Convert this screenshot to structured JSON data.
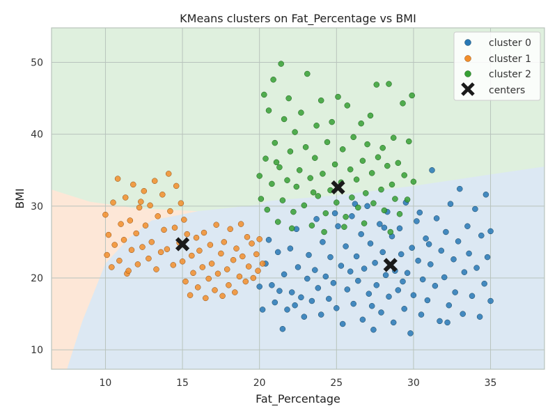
{
  "chart_data": {
    "type": "scatter",
    "title": "KMeans clusters on Fat_Percentage vs BMI",
    "xlabel": "Fat_Percentage",
    "ylabel": "BMI",
    "xlim": [
      6.5,
      38.5
    ],
    "ylim": [
      7.3,
      54.8
    ],
    "xticks": [
      10,
      15,
      20,
      25,
      30,
      35
    ],
    "yticks": [
      10,
      20,
      30,
      40,
      50
    ],
    "grid": true,
    "legend_position": "top-right",
    "colors": {
      "cluster 0": "#2878b5",
      "cluster 1": "#f28e2b",
      "cluster 2": "#37a035",
      "centers": "#1a1a1a",
      "region 0": "#dce8f3",
      "region 1": "#fde7d7",
      "region 2": "#dff0de",
      "grid": "#b8c3bc"
    },
    "boundaries": {
      "region_1_vs_0": [
        [
          7.5,
          7.3
        ],
        [
          8.5,
          14
        ],
        [
          10,
          22
        ],
        [
          11.5,
          25.5
        ],
        [
          13,
          28
        ],
        [
          16,
          29.3
        ],
        [
          20,
          30.2
        ],
        [
          20.5,
          30.7
        ]
      ],
      "region_1_vs_2": [
        [
          6.5,
          32.3
        ],
        [
          9,
          30.6
        ],
        [
          12,
          29.7
        ],
        [
          16,
          29.3
        ],
        [
          20,
          30.2
        ],
        [
          20.5,
          30.7
        ]
      ],
      "region_0_vs_2": [
        [
          20.5,
          30.7
        ],
        [
          25,
          31.5
        ],
        [
          30,
          32.8
        ],
        [
          35,
          34.4
        ],
        [
          38.5,
          35.5
        ]
      ]
    },
    "centers": [
      {
        "cluster": "cluster 0",
        "x": 28.5,
        "y": 21.8
      },
      {
        "cluster": "cluster 1",
        "x": 15.0,
        "y": 24.7
      },
      {
        "cluster": "cluster 2",
        "x": 25.1,
        "y": 32.6
      }
    ],
    "series": [
      {
        "name": "cluster 0",
        "points": [
          [
            20.0,
            18.8
          ],
          [
            20.2,
            15.6
          ],
          [
            20.4,
            22.0
          ],
          [
            20.6,
            25.3
          ],
          [
            20.8,
            19.0
          ],
          [
            21.0,
            16.6
          ],
          [
            21.2,
            23.6
          ],
          [
            21.3,
            18.2
          ],
          [
            21.5,
            12.9
          ],
          [
            21.6,
            20.5
          ],
          [
            21.8,
            15.6
          ],
          [
            22.0,
            24.1
          ],
          [
            22.1,
            18.0
          ],
          [
            22.3,
            16.2
          ],
          [
            22.5,
            21.5
          ],
          [
            22.7,
            17.3
          ],
          [
            22.9,
            14.6
          ],
          [
            23.1,
            19.9
          ],
          [
            23.2,
            23.2
          ],
          [
            23.4,
            16.8
          ],
          [
            23.6,
            21.1
          ],
          [
            23.8,
            18.6
          ],
          [
            24.0,
            14.9
          ],
          [
            24.1,
            25.0
          ],
          [
            24.3,
            20.2
          ],
          [
            24.5,
            17.1
          ],
          [
            24.6,
            22.9
          ],
          [
            24.8,
            19.3
          ],
          [
            25.0,
            15.8
          ],
          [
            25.1,
            27.2
          ],
          [
            25.3,
            21.7
          ],
          [
            25.4,
            13.6
          ],
          [
            25.6,
            24.4
          ],
          [
            25.7,
            18.4
          ],
          [
            25.9,
            20.9
          ],
          [
            26.0,
            28.6
          ],
          [
            26.1,
            16.4
          ],
          [
            26.3,
            23.0
          ],
          [
            26.4,
            19.6
          ],
          [
            26.6,
            26.1
          ],
          [
            26.7,
            14.2
          ],
          [
            26.8,
            21.3
          ],
          [
            27.0,
            30.0
          ],
          [
            27.1,
            17.8
          ],
          [
            27.2,
            24.8
          ],
          [
            27.4,
            12.8
          ],
          [
            27.5,
            22.1
          ],
          [
            27.6,
            19.0
          ],
          [
            27.8,
            27.5
          ],
          [
            27.9,
            15.2
          ],
          [
            28.0,
            23.6
          ],
          [
            28.2,
            20.4
          ],
          [
            28.3,
            29.2
          ],
          [
            28.4,
            17.4
          ],
          [
            28.6,
            25.8
          ],
          [
            28.7,
            13.8
          ],
          [
            28.8,
            21.0
          ],
          [
            29.0,
            18.3
          ],
          [
            29.1,
            26.9
          ],
          [
            29.2,
            23.3
          ],
          [
            29.4,
            15.7
          ],
          [
            29.5,
            30.5
          ],
          [
            29.6,
            20.7
          ],
          [
            29.8,
            12.3
          ],
          [
            29.9,
            24.2
          ],
          [
            30.0,
            17.6
          ],
          [
            30.2,
            27.9
          ],
          [
            30.3,
            22.4
          ],
          [
            30.5,
            14.9
          ],
          [
            30.6,
            19.8
          ],
          [
            30.8,
            25.5
          ],
          [
            30.9,
            16.9
          ],
          [
            31.1,
            21.9
          ],
          [
            31.2,
            35.0
          ],
          [
            31.4,
            18.9
          ],
          [
            31.5,
            28.3
          ],
          [
            31.7,
            14.0
          ],
          [
            31.8,
            23.8
          ],
          [
            32.0,
            20.1
          ],
          [
            32.1,
            26.4
          ],
          [
            32.3,
            16.2
          ],
          [
            32.4,
            30.3
          ],
          [
            32.6,
            22.6
          ],
          [
            32.7,
            18.0
          ],
          [
            32.9,
            25.1
          ],
          [
            33.0,
            32.4
          ],
          [
            33.2,
            15.0
          ],
          [
            33.3,
            20.8
          ],
          [
            33.5,
            27.2
          ],
          [
            33.6,
            23.4
          ],
          [
            33.8,
            17.5
          ],
          [
            34.0,
            29.6
          ],
          [
            34.1,
            21.4
          ],
          [
            34.3,
            14.6
          ],
          [
            34.4,
            25.9
          ],
          [
            34.6,
            19.2
          ],
          [
            34.7,
            31.6
          ],
          [
            34.8,
            22.9
          ],
          [
            35.0,
            16.8
          ],
          [
            35.0,
            26.5
          ],
          [
            22.4,
            26.8
          ],
          [
            23.7,
            28.2
          ],
          [
            24.9,
            29.0
          ],
          [
            26.2,
            30.3
          ],
          [
            27.3,
            16.1
          ],
          [
            28.1,
            27.0
          ],
          [
            29.3,
            19.5
          ],
          [
            30.4,
            29.1
          ],
          [
            31.0,
            24.7
          ],
          [
            32.2,
            13.8
          ]
        ]
      },
      {
        "name": "cluster 1",
        "points": [
          [
            10.0,
            28.8
          ],
          [
            10.1,
            23.2
          ],
          [
            10.2,
            26.0
          ],
          [
            10.4,
            21.5
          ],
          [
            10.5,
            30.5
          ],
          [
            10.6,
            24.6
          ],
          [
            10.8,
            33.8
          ],
          [
            10.9,
            22.4
          ],
          [
            11.0,
            27.5
          ],
          [
            11.2,
            25.3
          ],
          [
            11.3,
            31.2
          ],
          [
            11.4,
            20.6
          ],
          [
            11.6,
            28.0
          ],
          [
            11.7,
            23.9
          ],
          [
            11.8,
            33.0
          ],
          [
            12.0,
            26.2
          ],
          [
            12.1,
            21.9
          ],
          [
            12.2,
            29.8
          ],
          [
            12.4,
            24.3
          ],
          [
            12.5,
            32.1
          ],
          [
            12.6,
            27.3
          ],
          [
            12.8,
            22.7
          ],
          [
            12.9,
            30.1
          ],
          [
            13.0,
            25.0
          ],
          [
            13.2,
            33.5
          ],
          [
            13.3,
            21.2
          ],
          [
            13.4,
            28.6
          ],
          [
            13.6,
            23.6
          ],
          [
            13.7,
            31.6
          ],
          [
            13.8,
            26.7
          ],
          [
            14.0,
            24.0
          ],
          [
            14.1,
            34.5
          ],
          [
            14.2,
            29.3
          ],
          [
            14.4,
            21.8
          ],
          [
            14.5,
            27.0
          ],
          [
            14.6,
            32.8
          ],
          [
            14.8,
            24.9
          ],
          [
            14.9,
            30.4
          ],
          [
            15.0,
            22.3
          ],
          [
            15.1,
            28.1
          ],
          [
            15.2,
            19.5
          ],
          [
            15.3,
            26.1
          ],
          [
            15.5,
            17.6
          ],
          [
            15.6,
            23.1
          ],
          [
            15.7,
            20.7
          ],
          [
            15.9,
            25.6
          ],
          [
            16.0,
            18.7
          ],
          [
            16.1,
            23.8
          ],
          [
            16.3,
            21.5
          ],
          [
            16.4,
            26.3
          ],
          [
            16.5,
            17.2
          ],
          [
            16.7,
            19.9
          ],
          [
            16.8,
            24.6
          ],
          [
            16.9,
            22.0
          ],
          [
            17.1,
            18.3
          ],
          [
            17.2,
            27.4
          ],
          [
            17.3,
            20.6
          ],
          [
            17.5,
            23.4
          ],
          [
            17.6,
            17.5
          ],
          [
            17.7,
            25.0
          ],
          [
            17.9,
            21.2
          ],
          [
            18.0,
            19.0
          ],
          [
            18.1,
            26.8
          ],
          [
            18.3,
            22.5
          ],
          [
            18.4,
            18.0
          ],
          [
            18.5,
            24.1
          ],
          [
            18.7,
            20.2
          ],
          [
            18.8,
            27.5
          ],
          [
            18.9,
            23.0
          ],
          [
            19.1,
            19.5
          ],
          [
            19.2,
            25.7
          ],
          [
            19.3,
            21.6
          ],
          [
            19.5,
            24.8
          ],
          [
            19.6,
            20.0
          ],
          [
            19.8,
            23.3
          ],
          [
            19.9,
            21.0
          ],
          [
            20.0,
            25.4
          ],
          [
            20.2,
            22.0
          ],
          [
            11.5,
            21.0
          ],
          [
            12.3,
            30.6
          ]
        ]
      },
      {
        "name": "cluster 2",
        "points": [
          [
            20.0,
            34.2
          ],
          [
            20.1,
            31.0
          ],
          [
            20.3,
            45.5
          ],
          [
            20.4,
            36.6
          ],
          [
            20.5,
            29.5
          ],
          [
            20.6,
            43.3
          ],
          [
            20.8,
            33.1
          ],
          [
            20.9,
            47.6
          ],
          [
            21.0,
            38.8
          ],
          [
            21.2,
            27.8
          ],
          [
            21.3,
            35.4
          ],
          [
            21.4,
            49.8
          ],
          [
            21.5,
            30.8
          ],
          [
            21.6,
            42.1
          ],
          [
            21.8,
            33.6
          ],
          [
            21.9,
            45.0
          ],
          [
            22.0,
            37.6
          ],
          [
            22.2,
            29.2
          ],
          [
            22.3,
            40.3
          ],
          [
            22.4,
            32.7
          ],
          [
            22.6,
            35.0
          ],
          [
            22.7,
            43.0
          ],
          [
            22.9,
            30.1
          ],
          [
            23.0,
            38.2
          ],
          [
            23.1,
            48.4
          ],
          [
            23.3,
            33.9
          ],
          [
            23.4,
            27.3
          ],
          [
            23.6,
            36.7
          ],
          [
            23.7,
            41.2
          ],
          [
            23.8,
            31.4
          ],
          [
            24.0,
            44.7
          ],
          [
            24.1,
            34.5
          ],
          [
            24.3,
            29.0
          ],
          [
            24.4,
            38.9
          ],
          [
            24.6,
            32.2
          ],
          [
            24.7,
            41.7
          ],
          [
            24.9,
            35.8
          ],
          [
            25.0,
            30.5
          ],
          [
            25.1,
            45.2
          ],
          [
            25.3,
            33.3
          ],
          [
            25.4,
            37.9
          ],
          [
            25.6,
            28.5
          ],
          [
            25.7,
            44.0
          ],
          [
            25.9,
            35.1
          ],
          [
            26.0,
            31.2
          ],
          [
            26.1,
            39.6
          ],
          [
            26.3,
            33.7
          ],
          [
            26.4,
            29.8
          ],
          [
            26.6,
            41.5
          ],
          [
            26.7,
            36.3
          ],
          [
            26.9,
            31.8
          ],
          [
            27.0,
            38.6
          ],
          [
            27.2,
            42.6
          ],
          [
            27.3,
            34.6
          ],
          [
            27.4,
            30.4
          ],
          [
            27.6,
            46.9
          ],
          [
            27.7,
            36.8
          ],
          [
            27.9,
            32.3
          ],
          [
            28.0,
            38.1
          ],
          [
            28.1,
            29.4
          ],
          [
            28.3,
            35.6
          ],
          [
            28.4,
            47.0
          ],
          [
            28.6,
            33.0
          ],
          [
            28.7,
            39.5
          ],
          [
            28.8,
            31.0
          ],
          [
            29.0,
            36.0
          ],
          [
            29.1,
            28.9
          ],
          [
            29.3,
            44.3
          ],
          [
            29.4,
            34.3
          ],
          [
            29.6,
            30.9
          ],
          [
            29.7,
            39.0
          ],
          [
            29.9,
            45.4
          ],
          [
            30.0,
            33.4
          ],
          [
            21.1,
            36.1
          ],
          [
            22.1,
            26.9
          ],
          [
            23.5,
            31.9
          ],
          [
            24.2,
            26.4
          ],
          [
            25.5,
            27.1
          ],
          [
            26.8,
            27.6
          ],
          [
            28.5,
            26.4
          ]
        ]
      }
    ],
    "legend": [
      "cluster 0",
      "cluster 1",
      "cluster 2",
      "centers"
    ]
  }
}
